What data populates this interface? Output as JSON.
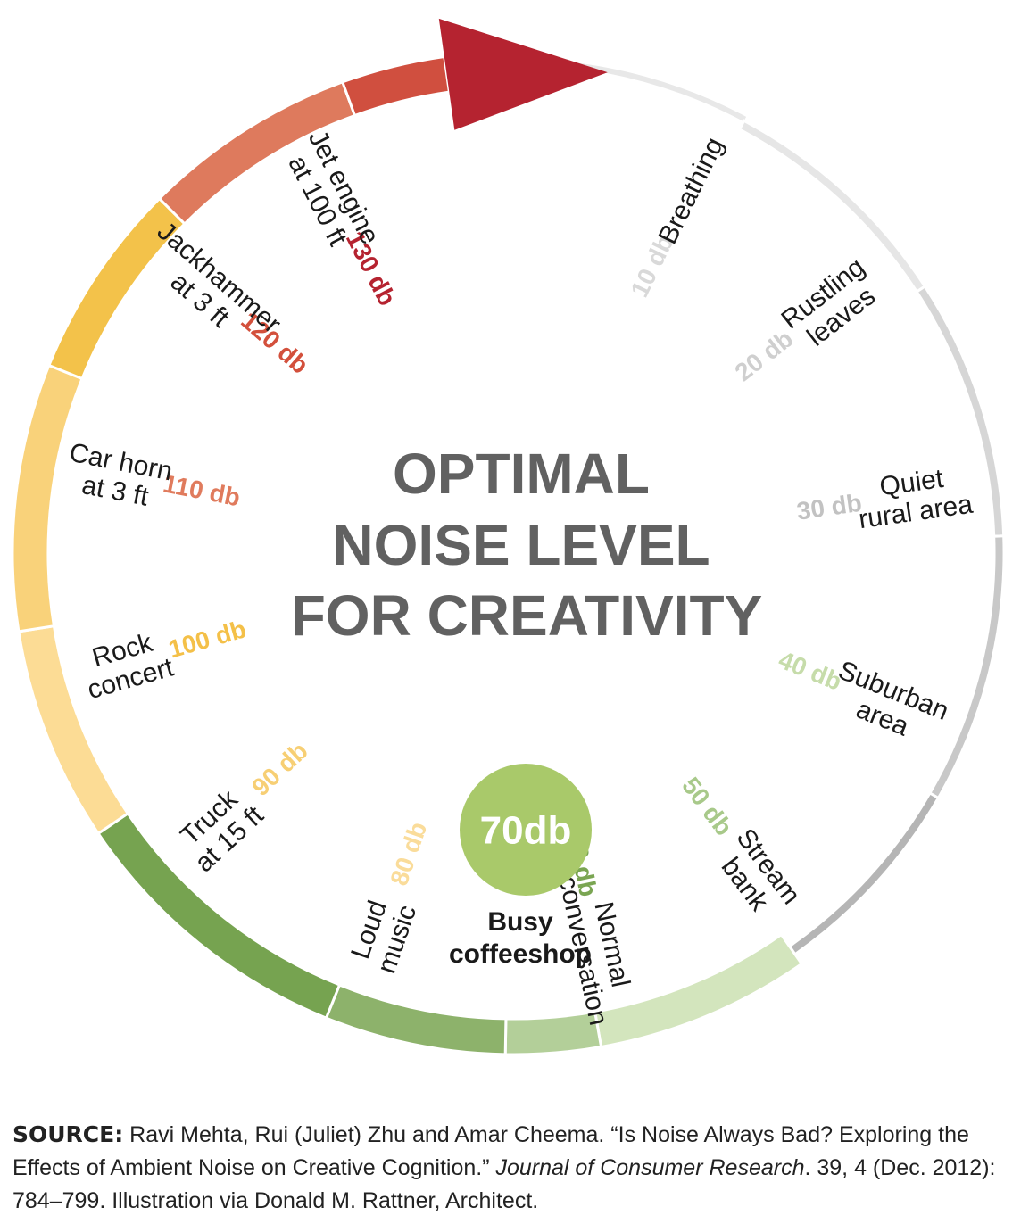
{
  "title": [
    "OPTIMAL",
    "NOISE LEVEL",
    "FOR CREATIVITY"
  ],
  "center": {
    "db": "70db",
    "label": [
      "Busy",
      "coffeeshop"
    ],
    "color": "#a9c96a"
  },
  "levels": [
    {
      "db": "10 db",
      "label": [
        "Breathing"
      ],
      "arc_color": "#e6e6e6",
      "db_color": "#d9d9d9"
    },
    {
      "db": "20 db",
      "label": [
        "Rustling",
        "leaves"
      ],
      "arc_color": "#d6d6d6",
      "db_color": "#cfcfcf"
    },
    {
      "db": "30 db",
      "label": [
        "Quiet",
        "rural area"
      ],
      "arc_color": "#c8c8c8",
      "db_color": "#c2c2c2"
    },
    {
      "db": "40 db",
      "label": [
        "Suburban",
        "area"
      ],
      "arc_color": "#b5b5b5",
      "db_color": "#c6dcaa"
    },
    {
      "db": "50 db",
      "label": [
        "Stream",
        "bank"
      ],
      "arc_color": "#d3e5bd",
      "db_color": "#a8c98a"
    },
    {
      "db": "60 db",
      "label": [
        "Normal",
        "conversation"
      ],
      "arc_color": "#b3cf99",
      "db_color": "#7aa552"
    },
    {
      "db": "70 db",
      "label": [
        "Busy",
        "coffeeshop"
      ],
      "arc_color": "#8db26b",
      "db_color": "#a9c96a"
    },
    {
      "db": "80 db",
      "label": [
        "Loud",
        "music"
      ],
      "arc_color": "#76a350",
      "db_color": "#fadc9a"
    },
    {
      "db": "90 db",
      "label": [
        "Truck",
        "at 15 ft"
      ],
      "arc_color": "#fcdc95",
      "db_color": "#f7cf74"
    },
    {
      "db": "100 db",
      "label": [
        "Rock",
        "concert"
      ],
      "arc_color": "#f9d27a",
      "db_color": "#f4c048"
    },
    {
      "db": "110 db",
      "label": [
        "Car horn",
        "at 3 ft"
      ],
      "arc_color": "#f3c24a",
      "db_color": "#e07b5d"
    },
    {
      "db": "120 db",
      "label": [
        "Jackhammer",
        "at 3 ft"
      ],
      "arc_color": "#de7a5d",
      "db_color": "#d3503c"
    },
    {
      "db": "130 db",
      "label": [
        "Jet engine",
        "at 100 ft"
      ],
      "arc_color": "#d04f3f",
      "db_color": "#b52330"
    }
  ],
  "arrow_color": "#b52330",
  "source": {
    "label": "SOURCE:",
    "text1": " Ravi Mehta, Rui (Juliet) Zhu and Amar Cheema. “Is Noise Always Bad? Exploring the Effects of Ambient Noise on Creative Cognition.” ",
    "journal": "Journal of Consumer Research",
    "text2": ". 39, 4 (Dec. 2012): 784–799. Illustration via Donald M. Rattner, Architect."
  }
}
